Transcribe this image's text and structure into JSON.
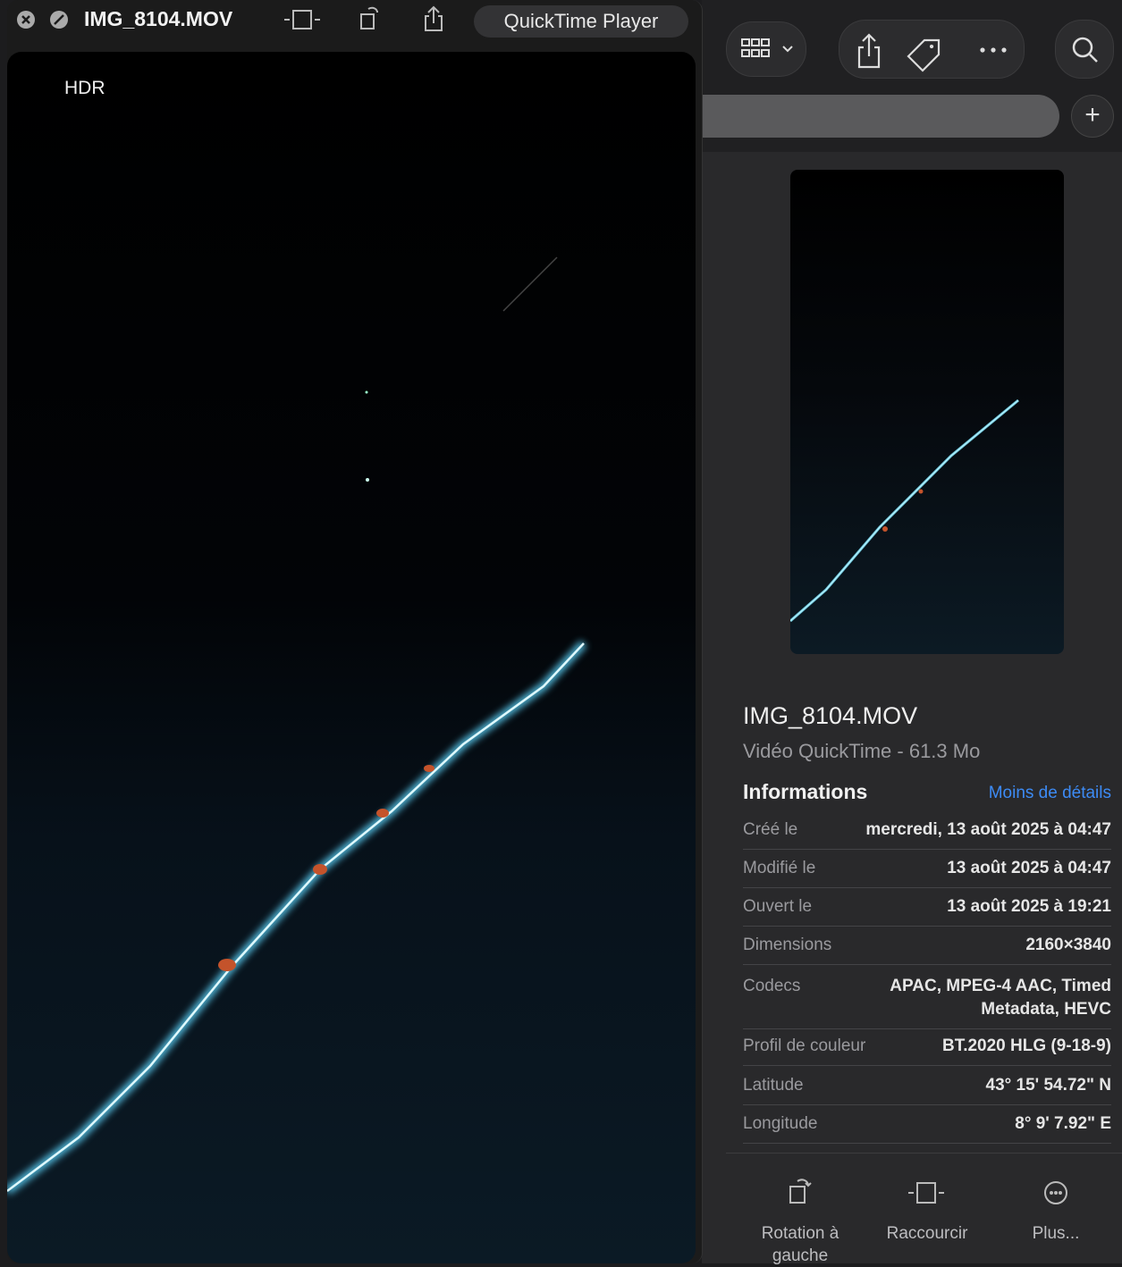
{
  "window": {
    "title": "IMG_8104.MOV",
    "app_button": "QuickTime Player",
    "badge": "HDR"
  },
  "info_panel": {
    "file_name": "IMG_8104.MOV",
    "subtitle": "Vidéo QuickTime - 61.3 Mo",
    "section_title": "Informations",
    "toggle": "Moins de détails",
    "rows": [
      {
        "label": "Créé le",
        "value": "mercredi, 13 août 2025 à 04:47"
      },
      {
        "label": "Modifié le",
        "value": "13 août 2025 à 04:47"
      },
      {
        "label": "Ouvert le",
        "value": "13 août 2025 à 19:21"
      },
      {
        "label": "Dimensions",
        "value": "2160×3840"
      },
      {
        "label": "Codecs",
        "value": "APAC, MPEG-4 AAC, Timed Metadata, HEVC"
      },
      {
        "label": "Profil de couleur",
        "value": "BT.2020 HLG (9-18-9)"
      },
      {
        "label": "Latitude",
        "value": "43° 15' 54.72\" N"
      },
      {
        "label": "Longitude",
        "value": "8° 9' 7.92\" E"
      }
    ],
    "actions": [
      "Rotation à gauche",
      "Raccourcir",
      "Plus..."
    ]
  }
}
